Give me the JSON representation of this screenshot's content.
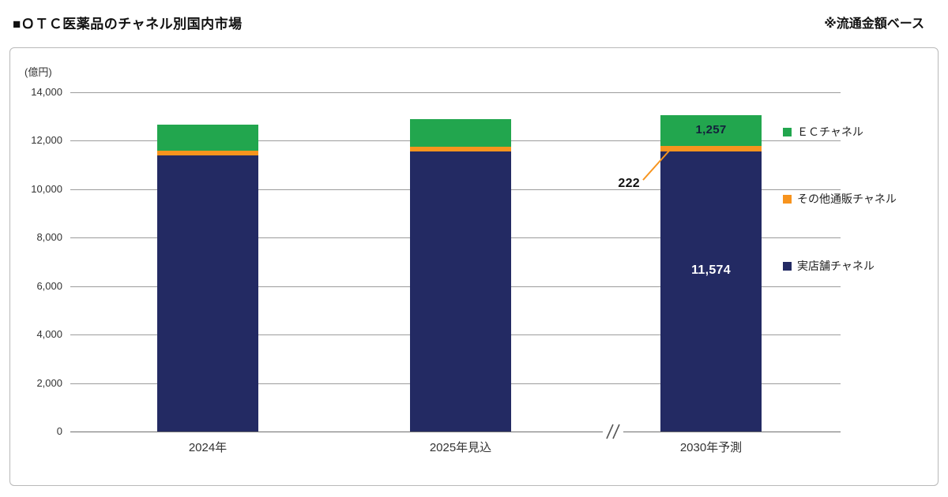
{
  "chart_data": {
    "type": "bar",
    "stacked": true,
    "title": "■ＯＴＣ医薬品のチャネル別国内市場",
    "note": "※流通金額ベース",
    "unit_label": "(億円)",
    "categories": [
      "2024年",
      "2025年見込",
      "2030年予測"
    ],
    "series": [
      {
        "name": "実店舗チャネル",
        "color": "#232a63",
        "values": [
          11400,
          11550,
          11574
        ]
      },
      {
        "name": "その他通販チャネル",
        "color": "#f7941e",
        "values": [
          200,
          200,
          222
        ]
      },
      {
        "name": "ＥＣチャネル",
        "color": "#22a64e",
        "values": [
          1050,
          1150,
          1257
        ]
      }
    ],
    "data_labels": {
      "category_index": 2,
      "values": {
        "実店舗チャネル": "11,574",
        "その他通販チャネル": "222",
        "ＥＣチャネル": "1,257"
      }
    },
    "ylim": [
      0,
      14000
    ],
    "ytick_step": 2000,
    "grid": true,
    "axis_break_between": [
      "2025年見込",
      "2030年予測"
    ],
    "legend_position": "right",
    "legend_order": [
      "ＥＣチャネル",
      "その他通販チャネル",
      "実店舗チャネル"
    ]
  }
}
